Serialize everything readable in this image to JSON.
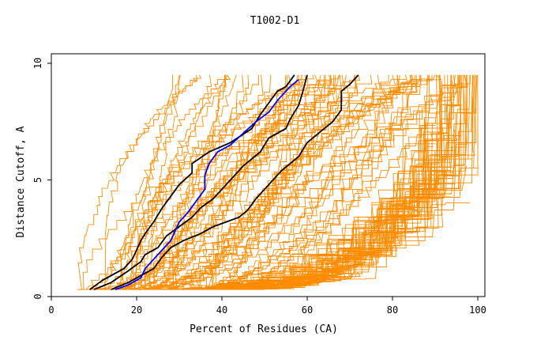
{
  "chart_data": {
    "type": "line",
    "title": "T1002-D1",
    "xlabel": "Percent of Residues (CA)",
    "ylabel": "Distance Cutoff, A",
    "xlim": [
      0,
      100
    ],
    "ylim": [
      0,
      10
    ],
    "x_ticks": [
      "0",
      "20",
      "40",
      "60",
      "80",
      "100"
    ],
    "y_ticks": [
      "0",
      "5",
      "10"
    ],
    "colors": {
      "orange": "#ff8c00",
      "black": "#000000",
      "blue": "#0000ff",
      "frame": "#000000"
    },
    "series_groups": [
      {
        "name": "orange-high",
        "color": "#ff8c00",
        "count": 30,
        "start_x": [
          6,
          28
        ],
        "end_x": [
          28,
          72
        ]
      },
      {
        "name": "orange-mid",
        "color": "#ff8c00",
        "count": 45,
        "start_x": [
          12,
          40
        ],
        "end_x": [
          55,
          100
        ]
      },
      {
        "name": "orange-low",
        "color": "#ff8c00",
        "count": 60,
        "start_x": [
          15,
          40
        ],
        "end_x": [
          88,
          100
        ]
      }
    ],
    "highlight_series": [
      {
        "name": "black-1",
        "color": "#000000",
        "points": [
          [
            9,
            0.3
          ],
          [
            12,
            0.7
          ],
          [
            17,
            1.2
          ],
          [
            19,
            1.6
          ],
          [
            20,
            2.0
          ],
          [
            21,
            2.4
          ],
          [
            22,
            2.7
          ],
          [
            24,
            3.2
          ],
          [
            26,
            3.8
          ],
          [
            28,
            4.3
          ],
          [
            30,
            4.8
          ],
          [
            33,
            5.3
          ],
          [
            33,
            5.7
          ],
          [
            37,
            6.2
          ],
          [
            42,
            6.6
          ],
          [
            47,
            7.2
          ],
          [
            49,
            7.8
          ],
          [
            51,
            8.3
          ],
          [
            53,
            8.8
          ],
          [
            55,
            9.0
          ],
          [
            57,
            9.5
          ]
        ]
      },
      {
        "name": "black-2",
        "color": "#000000",
        "points": [
          [
            10,
            0.3
          ],
          [
            14,
            0.6
          ],
          [
            18,
            1.1
          ],
          [
            21,
            1.5
          ],
          [
            22,
            1.8
          ],
          [
            25,
            2.1
          ],
          [
            27,
            2.6
          ],
          [
            30,
            3.0
          ],
          [
            33,
            3.4
          ],
          [
            35,
            3.8
          ],
          [
            38,
            4.2
          ],
          [
            40,
            4.6
          ],
          [
            42,
            5.0
          ],
          [
            45,
            5.6
          ],
          [
            49,
            6.2
          ],
          [
            51,
            6.8
          ],
          [
            55,
            7.2
          ],
          [
            56,
            7.6
          ],
          [
            58,
            8.2
          ],
          [
            59,
            8.8
          ],
          [
            60,
            9.5
          ]
        ]
      },
      {
        "name": "black-3",
        "color": "#000000",
        "points": [
          [
            14,
            0.3
          ],
          [
            18,
            0.6
          ],
          [
            21,
            0.9
          ],
          [
            24,
            1.2
          ],
          [
            26,
            1.7
          ],
          [
            28,
            2.1
          ],
          [
            31,
            2.4
          ],
          [
            35,
            2.7
          ],
          [
            38,
            3.0
          ],
          [
            41,
            3.2
          ],
          [
            44,
            3.4
          ],
          [
            46,
            3.7
          ],
          [
            48,
            4.2
          ],
          [
            50,
            4.6
          ],
          [
            52,
            5.0
          ],
          [
            54,
            5.4
          ],
          [
            56,
            5.7
          ],
          [
            58,
            6.0
          ],
          [
            60,
            6.6
          ],
          [
            64,
            7.2
          ],
          [
            66,
            7.5
          ],
          [
            68,
            8.0
          ],
          [
            68,
            8.8
          ],
          [
            70,
            9.1
          ],
          [
            72,
            9.5
          ]
        ]
      },
      {
        "name": "blue",
        "color": "#0000ff",
        "points": [
          [
            15,
            0.3
          ],
          [
            18,
            0.5
          ],
          [
            21,
            0.8
          ],
          [
            22,
            1.2
          ],
          [
            24,
            1.6
          ],
          [
            26,
            2.0
          ],
          [
            28,
            2.4
          ],
          [
            29,
            2.8
          ],
          [
            30,
            3.2
          ],
          [
            32,
            3.6
          ],
          [
            34,
            4.1
          ],
          [
            36,
            4.6
          ],
          [
            36,
            5.2
          ],
          [
            37,
            5.7
          ],
          [
            39,
            6.2
          ],
          [
            42,
            6.5
          ],
          [
            45,
            7.0
          ],
          [
            48,
            7.5
          ],
          [
            51,
            7.9
          ],
          [
            53,
            8.4
          ],
          [
            56,
            9.0
          ],
          [
            58,
            9.3
          ]
        ]
      }
    ]
  }
}
